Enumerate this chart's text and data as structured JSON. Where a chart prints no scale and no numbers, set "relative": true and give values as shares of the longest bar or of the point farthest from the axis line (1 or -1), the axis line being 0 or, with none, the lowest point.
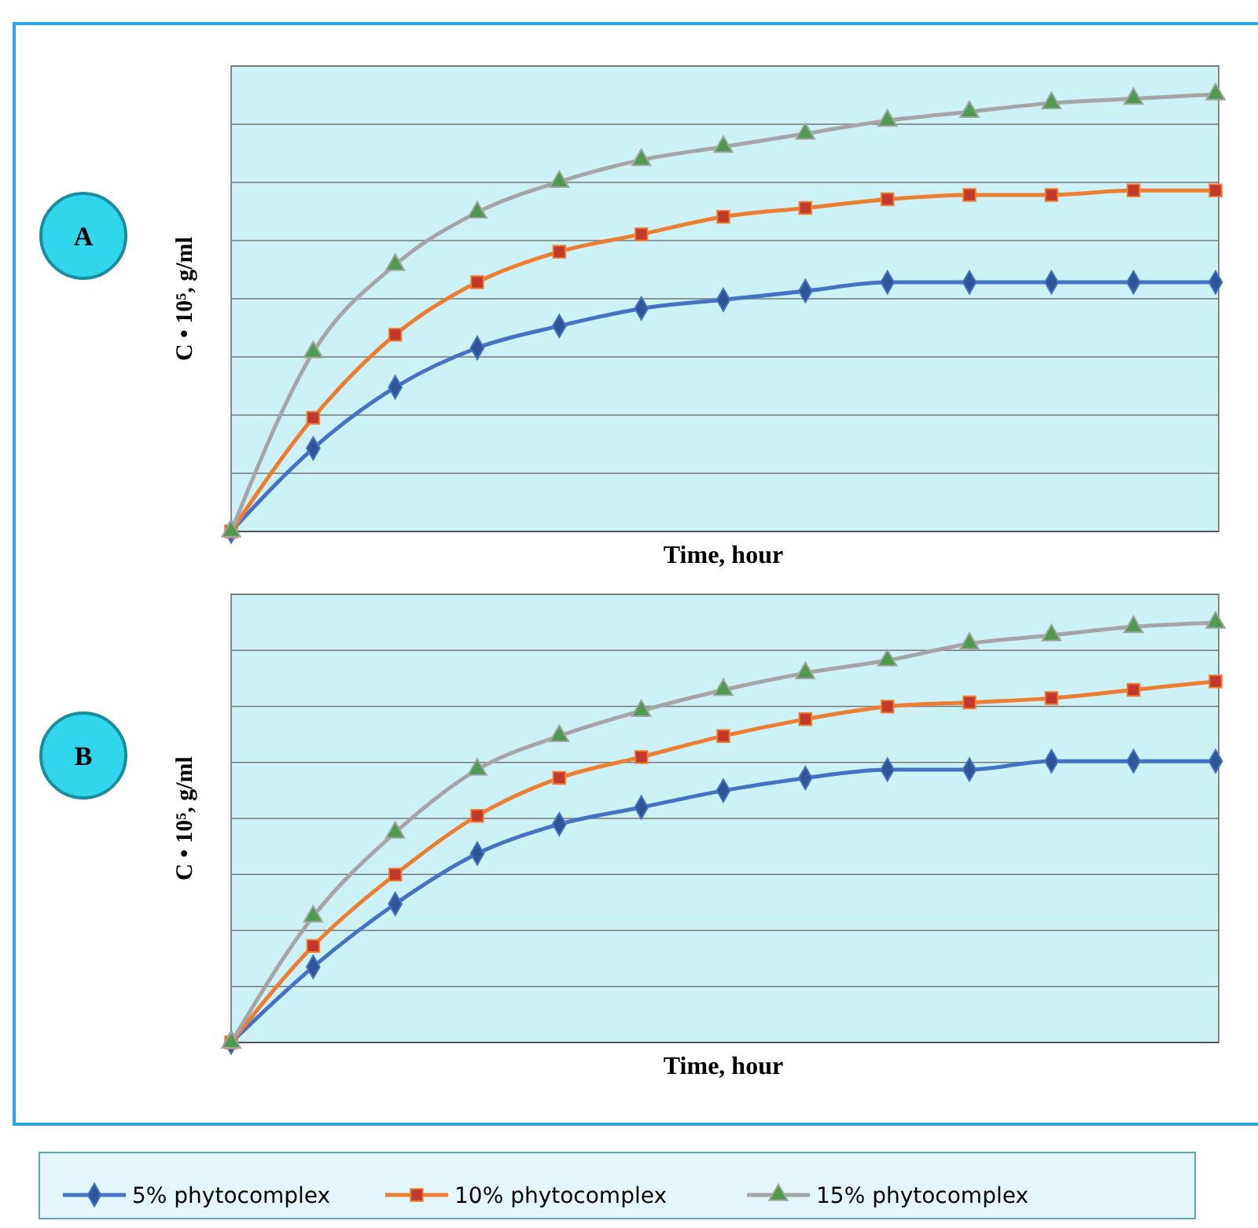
{
  "chart_data": [
    {
      "type": "line",
      "title": "A",
      "xlabel": "Time, hour",
      "ylabel": "C • 10⁵, g/ml",
      "relative": true,
      "grid": "y",
      "legend": "bottom",
      "categories": [
        null,
        null,
        null,
        null,
        null,
        null,
        null,
        null,
        null,
        null,
        null,
        null,
        null
      ],
      "series": [
        {
          "name": "5% phytocomplex",
          "color": "#4472c4",
          "marker": "diamond",
          "values": [
            0,
            0.19,
            0.33,
            0.42,
            0.47,
            0.51,
            0.53,
            0.55,
            0.57,
            0.57,
            0.57,
            0.57,
            0.57
          ]
        },
        {
          "name": "10% phytocomplex",
          "color": "#ed7d31",
          "marker": "square",
          "values": [
            0,
            0.26,
            0.45,
            0.57,
            0.64,
            0.68,
            0.72,
            0.74,
            0.76,
            0.77,
            0.77,
            0.78,
            0.78
          ]
        },
        {
          "name": "15% phytocomplex",
          "color": "#a5a5a5",
          "marker": "triangle",
          "values": [
            0,
            0.41,
            0.61,
            0.73,
            0.8,
            0.85,
            0.88,
            0.91,
            0.94,
            0.96,
            0.98,
            0.99,
            1
          ]
        }
      ]
    },
    {
      "type": "line",
      "title": "B",
      "xlabel": "Time, hour",
      "ylabel": "C • 10⁵, g/ml",
      "relative": true,
      "grid": "y",
      "categories": [
        null,
        null,
        null,
        null,
        null,
        null,
        null,
        null,
        null,
        null,
        null,
        null,
        null
      ],
      "series": [
        {
          "color": "#4472c4",
          "marker": "diamond",
          "values": [
            0,
            0.18,
            0.33,
            0.45,
            0.52,
            0.56,
            0.6,
            0.63,
            0.65,
            0.65,
            0.67,
            0.67,
            0.67
          ]
        },
        {
          "color": "#ed7d31",
          "marker": "square",
          "values": [
            0,
            0.23,
            0.4,
            0.54,
            0.63,
            0.68,
            0.73,
            0.77,
            0.8,
            0.81,
            0.82,
            0.84,
            0.86
          ]
        },
        {
          "color": "#a5a5a5",
          "marker": "triangle",
          "values": [
            0,
            0.3,
            0.5,
            0.65,
            0.73,
            0.79,
            0.84,
            0.88,
            0.91,
            0.95,
            0.97,
            0.99,
            1
          ]
        }
      ]
    }
  ]
}
